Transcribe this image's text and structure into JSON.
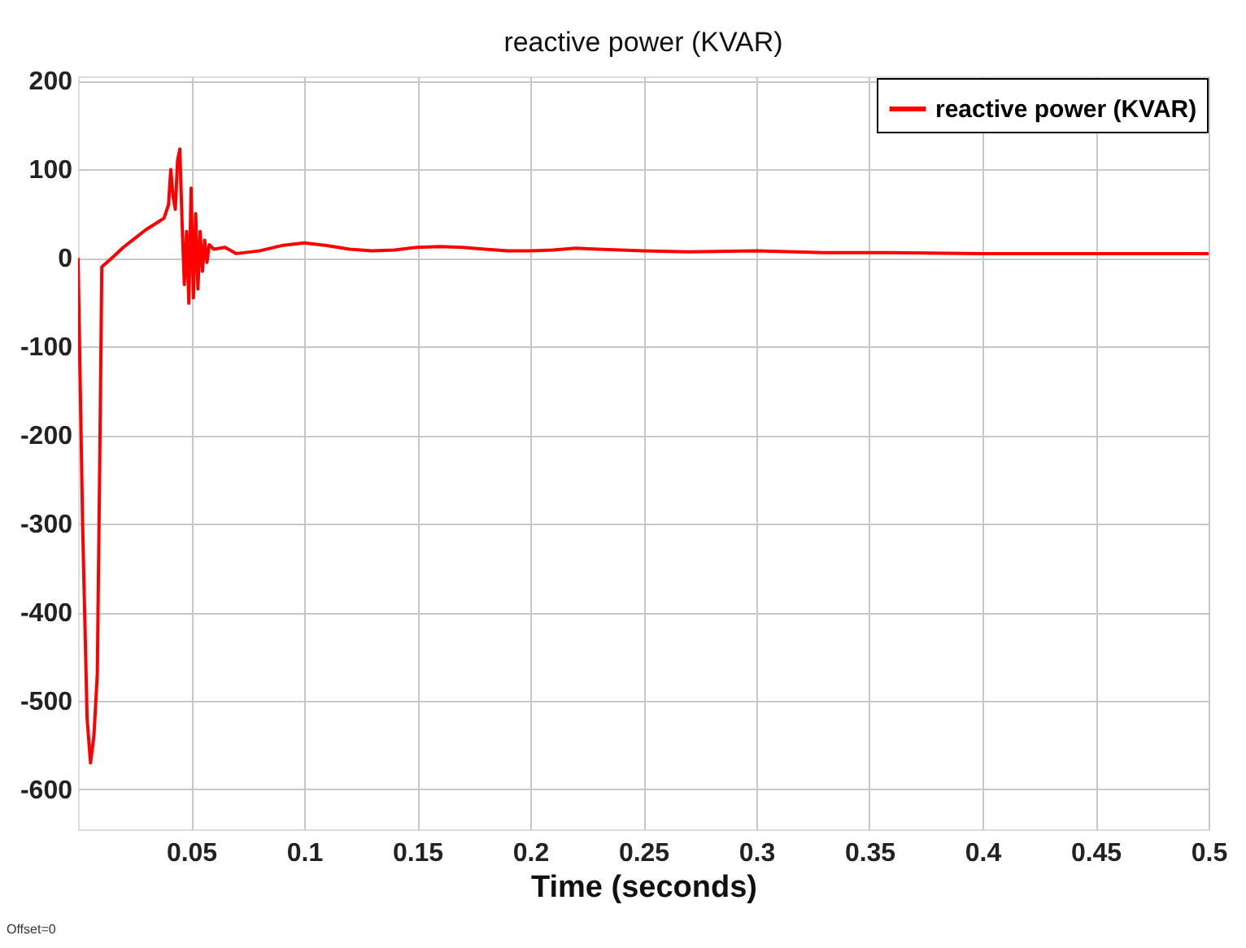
{
  "chart_data": {
    "type": "line",
    "title": "reactive power (KVAR)",
    "xlabel": "Time (seconds)",
    "x": [
      0,
      0.002,
      0.004,
      0.0055,
      0.007,
      0.0085,
      0.0095,
      0.0105,
      0.015,
      0.02,
      0.025,
      0.03,
      0.035,
      0.038,
      0.04,
      0.041,
      0.042,
      0.043,
      0.044,
      0.045,
      0.046,
      0.047,
      0.048,
      0.049,
      0.05,
      0.051,
      0.052,
      0.053,
      0.054,
      0.055,
      0.056,
      0.057,
      0.058,
      0.06,
      0.065,
      0.07,
      0.08,
      0.09,
      0.1,
      0.11,
      0.12,
      0.13,
      0.14,
      0.15,
      0.16,
      0.17,
      0.18,
      0.19,
      0.2,
      0.21,
      0.22,
      0.23,
      0.24,
      0.25,
      0.27,
      0.3,
      0.33,
      0.36,
      0.4,
      0.45,
      0.5
    ],
    "series": [
      {
        "name": "reactive power (KVAR)",
        "color": "#ff0000",
        "values": [
          0,
          -300,
          -520,
          -570,
          -540,
          -470,
          -250,
          -10,
          0,
          12,
          22,
          32,
          40,
          45,
          60,
          100,
          70,
          55,
          110,
          123,
          40,
          -30,
          30,
          -51,
          79,
          -45,
          50,
          -35,
          30,
          -15,
          20,
          -5,
          15,
          10,
          12,
          5,
          8,
          14,
          17,
          14,
          10,
          8,
          9,
          12,
          13,
          12,
          10,
          8,
          8,
          9,
          11,
          10,
          9,
          8,
          7,
          8,
          6,
          6,
          5,
          5,
          5
        ]
      }
    ],
    "xlim": [
      0,
      0.5
    ],
    "ylim": [
      -645,
      205
    ],
    "xticks": [
      0.05,
      0.1,
      0.15,
      0.2,
      0.25,
      0.3,
      0.35,
      0.4,
      0.45,
      0.5
    ],
    "yticks": [
      -600,
      -500,
      -400,
      -300,
      -200,
      -100,
      0,
      100,
      200
    ],
    "grid": true,
    "legend": "top right",
    "marker": "none",
    "line_style": "solid",
    "annotations": [
      "Offset=0"
    ]
  }
}
